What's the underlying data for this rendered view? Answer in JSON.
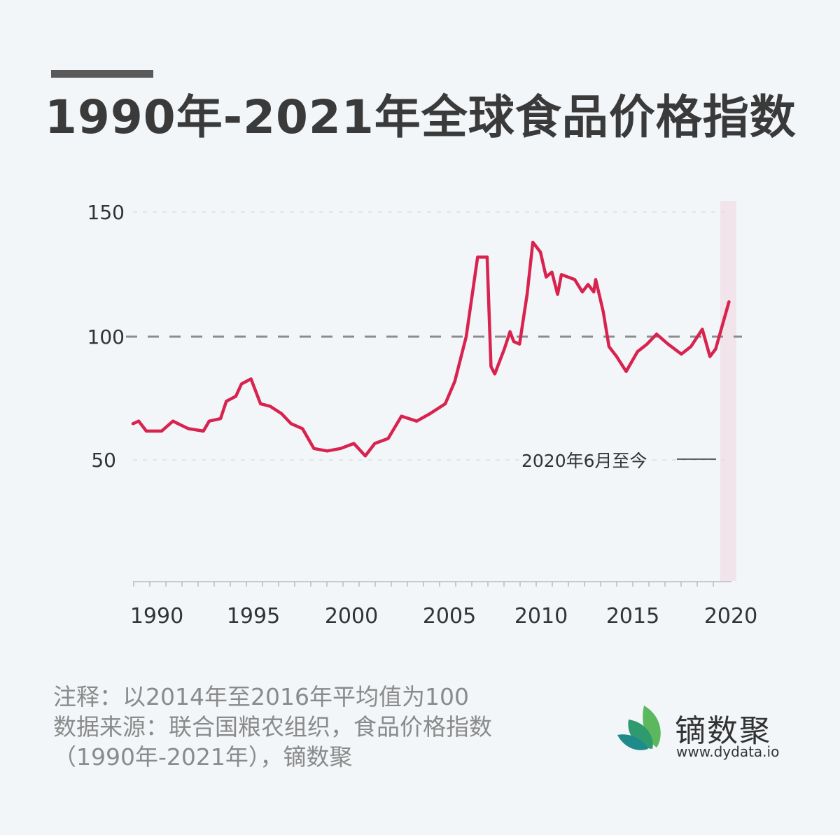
{
  "title": "1990年-2021年全球食品价格指数",
  "notes": {
    "note": "注释：以2014年至2016年平均值为100",
    "source_line1": "数据来源：联合国粮农组织，食品价格指数",
    "source_line2": "（1990年-2021年），镝数聚"
  },
  "logo": {
    "name": "镝数聚",
    "url": "www.dydata.io"
  },
  "annotation": "2020年6月至今",
  "colors": {
    "line": "#d8234f",
    "highlight": "#f1e4ea",
    "reference": "#8c8c8c",
    "title": "#3a3a3a",
    "notes": "#8a8a8a",
    "background": "#f2f6f9"
  },
  "y_ticks": [
    "150",
    "100",
    "50"
  ],
  "x_ticks": [
    "1990",
    "1995",
    "2000",
    "2005",
    "2010",
    "2015",
    "2020"
  ],
  "chart_data": {
    "type": "line",
    "title": "1990年-2021年全球食品价格指数",
    "xlabel": "",
    "ylabel": "",
    "ylim": [
      0,
      150
    ],
    "xlim": [
      1990,
      2021.4
    ],
    "grid": "horizontal dashed at 50 and 150; reference dashed line at 100",
    "reference_line": 100,
    "highlight_region": {
      "from": 2020.5,
      "to": 2021.4,
      "label": "2020年6月至今"
    },
    "series": [
      {
        "name": "全球食品价格指数",
        "x": [
          1990.0,
          1990.3,
          1990.7,
          1991.5,
          1992.1,
          1992.9,
          1993.7,
          1994.0,
          1994.6,
          1994.9,
          1995.4,
          1995.7,
          1996.2,
          1996.7,
          1997.2,
          1997.8,
          1998.3,
          1998.9,
          1999.5,
          2000.2,
          2000.9,
          2001.6,
          2002.2,
          2002.7,
          2003.4,
          2004.1,
          2004.9,
          2005.6,
          2006.4,
          2006.9,
          2007.5,
          2008.1,
          2008.6,
          2008.8,
          2009.0,
          2009.5,
          2009.8,
          2010.0,
          2010.3,
          2010.7,
          2011.0,
          2011.4,
          2011.7,
          2012.0,
          2012.3,
          2012.5,
          2013.2,
          2013.6,
          2013.9,
          2014.2,
          2014.3,
          2014.7,
          2015.0,
          2015.4,
          2015.9,
          2016.5,
          2017.0,
          2017.5,
          2018.1,
          2018.8,
          2019.3,
          2019.9,
          2020.3,
          2020.6,
          2021.3
        ],
        "values": [
          65,
          66,
          62,
          62,
          66,
          63,
          62,
          66,
          67,
          74,
          76,
          81,
          83,
          73,
          72,
          69,
          65,
          63,
          55,
          54,
          55,
          57,
          52,
          57,
          59,
          68,
          66,
          69,
          73,
          82,
          100,
          132,
          132,
          88,
          85,
          95,
          102,
          98,
          97,
          117,
          138,
          134,
          124,
          126,
          117,
          125,
          123,
          118,
          121,
          118,
          123,
          110,
          96,
          92,
          86,
          94,
          97,
          101,
          97,
          93,
          96,
          103,
          92,
          95,
          114
        ]
      }
    ]
  }
}
